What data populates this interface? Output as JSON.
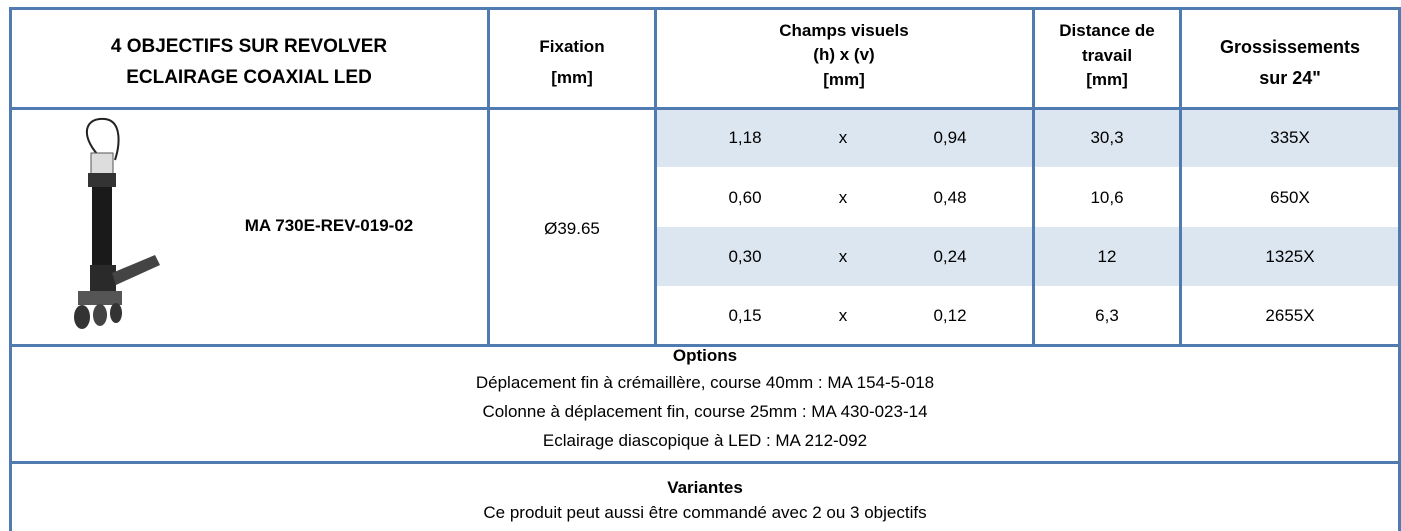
{
  "header": {
    "product_line1": "4 OBJECTIFS SUR REVOLVER",
    "product_line2": "ECLAIRAGE COAXIAL LED",
    "fixation_line1": "Fixation",
    "fixation_line2": "[mm]",
    "champs_line1": "Champs visuels",
    "champs_line2": "(h) x (v)",
    "champs_line3": "[mm]",
    "distance_line1": "Distance de",
    "distance_line2": "travail",
    "distance_line3": "[mm]",
    "grossissements_line1": "Grossissements",
    "grossissements_line2": "sur 24\""
  },
  "product": {
    "model": "MA 730E-REV-019-02",
    "fixation": "Ø39.65",
    "rows": [
      [
        "1,18",
        "x",
        "0,94",
        "30,3",
        "335X"
      ],
      [
        "0,60",
        "x",
        "0,48",
        "10,6",
        "650X"
      ],
      [
        "0,30",
        "x",
        "0,24",
        "12",
        "1325X"
      ],
      [
        "0,15",
        "x",
        "0,12",
        "6,3",
        "2655X"
      ]
    ]
  },
  "options": {
    "title": "Options",
    "items": [
      "Déplacement fin à crémaillère, course 40mm : MA 154-5-018",
      "Colonne à déplacement fin, course 25mm : MA 430-023-14",
      "Eclairage diascopique à LED : MA 212-092"
    ]
  },
  "variantes": {
    "title": "Variantes",
    "items": [
      "Ce produit peut aussi être commandé avec 2 ou 3 objectifs"
    ]
  }
}
